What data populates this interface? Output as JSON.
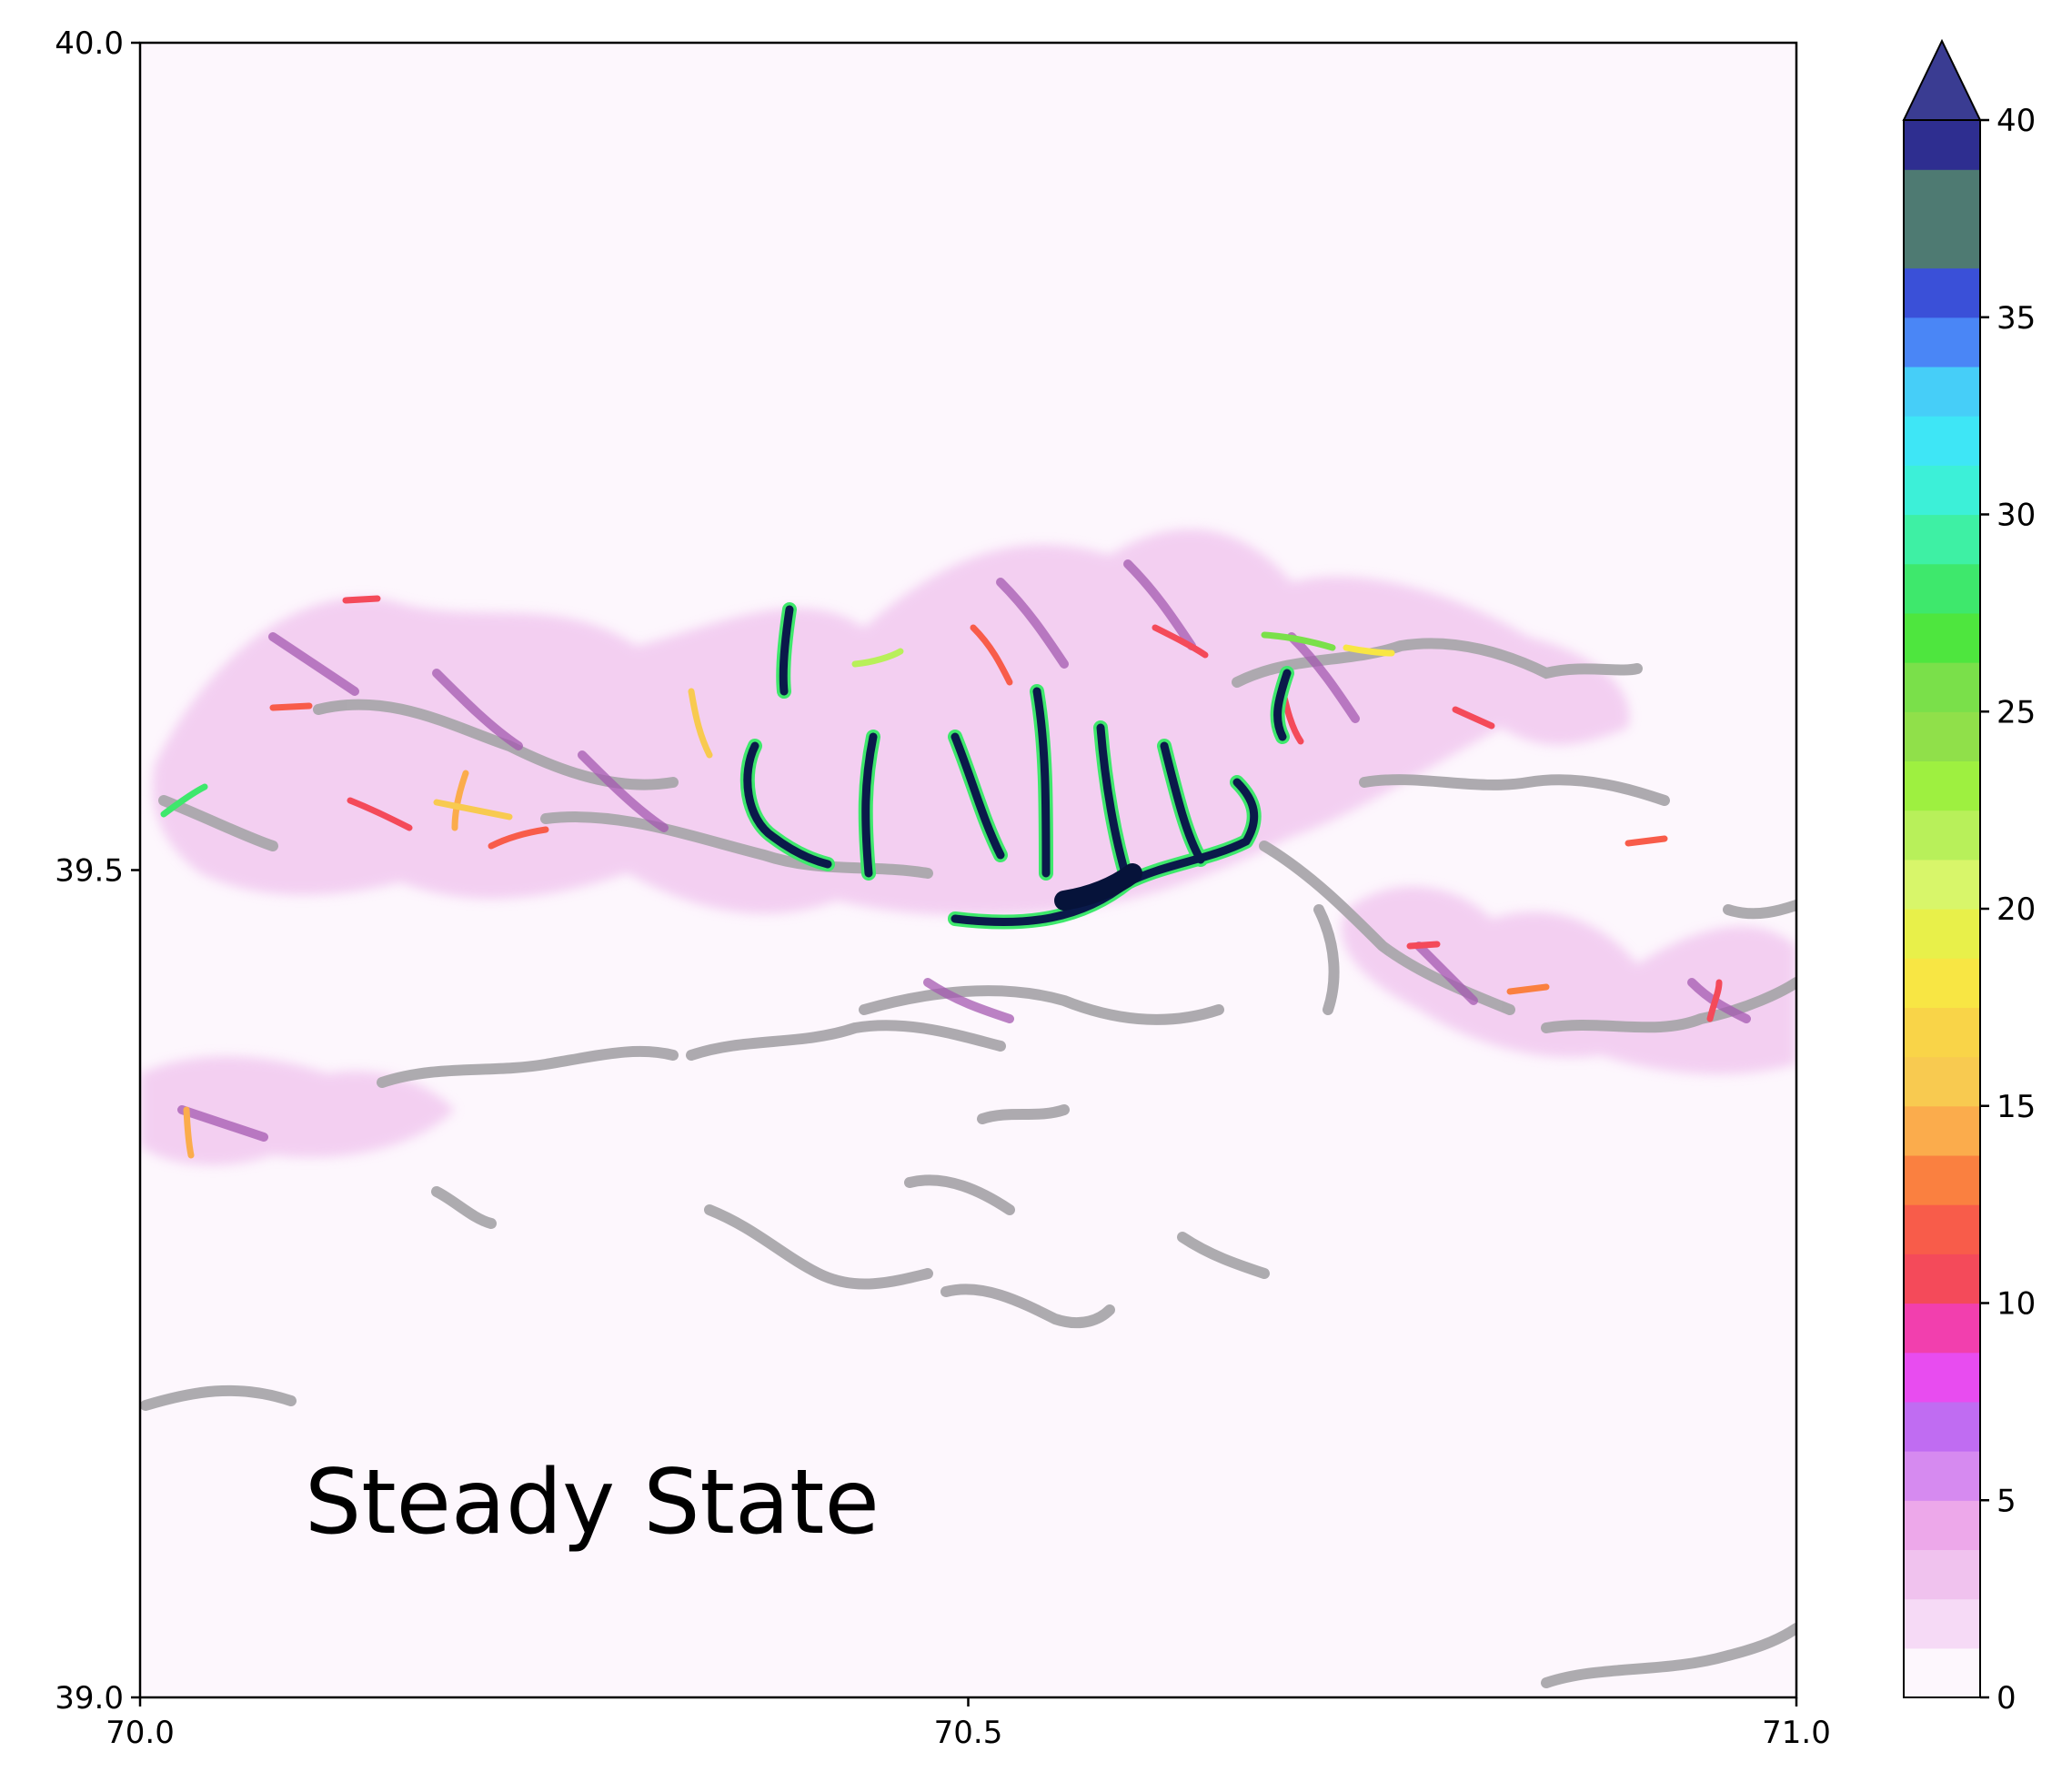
{
  "chart_data": {
    "type": "heatmap",
    "title": "",
    "annotation": "Steady State",
    "xlabel": "",
    "ylabel": "",
    "xlim": [
      70.0,
      71.0
    ],
    "ylim": [
      39.0,
      40.0
    ],
    "x_ticks": [
      "70.0",
      "70.5",
      "71.0"
    ],
    "x_tick_values": [
      70.0,
      70.5,
      71.0
    ],
    "y_ticks": [
      "39.0",
      "39.5",
      "40.0"
    ],
    "y_tick_values": [
      39.0,
      39.5,
      40.0
    ],
    "background_color": "#fdf7fd",
    "terrain_color": "#a9a6ab",
    "colorbar": {
      "min": 0,
      "max": 40,
      "extend": "max",
      "ticks": [
        "0",
        "5",
        "10",
        "15",
        "20",
        "25",
        "30",
        "35",
        "40"
      ],
      "tick_values": [
        0,
        5,
        10,
        15,
        20,
        25,
        30,
        35,
        40
      ],
      "levels": [
        0,
        1.25,
        2.5,
        3.75,
        5,
        6.25,
        7.5,
        8.75,
        10,
        11.25,
        12.5,
        13.75,
        15,
        16.25,
        17.5,
        18.75,
        20,
        21.25,
        22.5,
        23.75,
        25,
        26.25,
        27.5,
        28.75,
        30,
        31.25,
        32.5,
        33.75,
        35,
        36.25,
        37.5,
        38.75,
        40
      ],
      "colors": [
        "#fdf7fd",
        "#f6daf6",
        "#f0c2ee",
        "#eda8ea",
        "#d68af0",
        "#c06cf2",
        "#e84cf0",
        "#f23fae",
        "#f44a5a",
        "#f85c4a",
        "#fa8040",
        "#fbac4c",
        "#f8ca50",
        "#f9d448",
        "#f8e644",
        "#e8f04a",
        "#d8f66a",
        "#b8f05a",
        "#9ef040",
        "#90e04a",
        "#7ae04a",
        "#4ee63e",
        "#3ee86c",
        "#3ef0a4",
        "#3cf0d8",
        "#3ee6f6",
        "#46cef8",
        "#4a86f6",
        "#3a50d8",
        "#4e7a72",
        "#4e7a72",
        "#2e2e90"
      ],
      "extend_color": "#3a3c92"
    },
    "features": {
      "ice_thickness_overlay": "glacier ice thickness 0-40+ on 70.0-71.0 E, 39.0-40.0 N",
      "terrain_contours": "grey high-elevation contours"
    }
  }
}
